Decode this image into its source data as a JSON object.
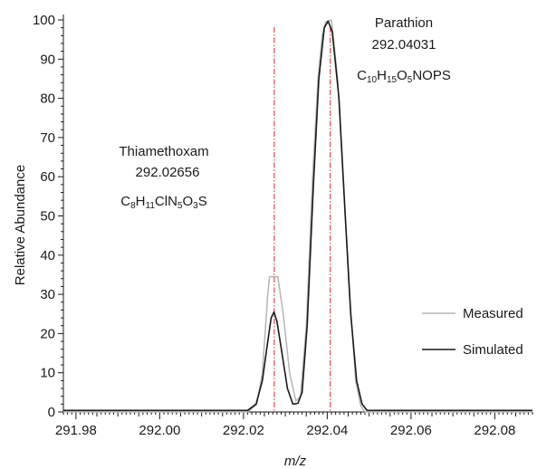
{
  "chart_data": {
    "type": "line",
    "xlabel": "m/z",
    "ylabel": "Relative Abundance",
    "xlim": [
      291.977,
      292.089
    ],
    "ylim": [
      0,
      100
    ],
    "xticks": [
      "291.98",
      "292.00",
      "292.02",
      "292.04",
      "292.06",
      "292.08"
    ],
    "yticks": [
      "0",
      "10",
      "20",
      "30",
      "40",
      "50",
      "60",
      "70",
      "80",
      "90",
      "100"
    ],
    "grid": false,
    "legend_position": "bottom-right",
    "annotations": [
      {
        "name": "Thiamethoxam",
        "mass": "292.02656",
        "formula": [
          [
            "C",
            ""
          ],
          [
            "8",
            "sub"
          ],
          [
            "H",
            ""
          ],
          [
            "11",
            "sub"
          ],
          [
            "ClN",
            ""
          ],
          [
            "5",
            "sub"
          ],
          [
            "O",
            ""
          ],
          [
            "3",
            "sub"
          ],
          [
            "S",
            ""
          ]
        ]
      },
      {
        "name": "Parathion",
        "mass": "292.04031",
        "formula": [
          [
            "C",
            ""
          ],
          [
            "10",
            "sub"
          ],
          [
            "H",
            ""
          ],
          [
            "15",
            "sub"
          ],
          [
            "O",
            ""
          ],
          [
            "5",
            "sub"
          ],
          [
            "NOPS",
            ""
          ]
        ]
      }
    ],
    "reference_lines": [
      292.02735,
      292.04073
    ],
    "series": [
      {
        "name": "Measured",
        "color": "#b5b5b5",
        "points": [
          [
            291.977,
            0
          ],
          [
            292.021,
            0
          ],
          [
            292.0232,
            2
          ],
          [
            292.0245,
            10
          ],
          [
            292.0258,
            30
          ],
          [
            292.0262,
            34.5
          ],
          [
            292.0282,
            34.5
          ],
          [
            292.0295,
            25
          ],
          [
            292.031,
            10
          ],
          [
            292.0325,
            2.8
          ],
          [
            292.0336,
            4
          ],
          [
            292.035,
            22
          ],
          [
            292.0365,
            60
          ],
          [
            292.0378,
            85
          ],
          [
            292.0388,
            96
          ],
          [
            292.0396,
            99.5
          ],
          [
            292.041,
            100
          ],
          [
            292.0425,
            85
          ],
          [
            292.0438,
            60
          ],
          [
            292.0452,
            32
          ],
          [
            292.0468,
            8
          ],
          [
            292.048,
            1.5
          ],
          [
            292.049,
            0
          ],
          [
            292.089,
            0
          ]
        ]
      },
      {
        "name": "Simulated",
        "color": "#1a1a1a",
        "points": [
          [
            291.977,
            0.4
          ],
          [
            292.021,
            0.4
          ],
          [
            292.023,
            2
          ],
          [
            292.0245,
            8
          ],
          [
            292.0258,
            18
          ],
          [
            292.0266,
            24
          ],
          [
            292.0273,
            25.5
          ],
          [
            292.028,
            23
          ],
          [
            292.0292,
            15
          ],
          [
            292.0305,
            6
          ],
          [
            292.0318,
            2
          ],
          [
            292.033,
            2.2
          ],
          [
            292.034,
            5
          ],
          [
            292.0352,
            22
          ],
          [
            292.0367,
            58
          ],
          [
            292.038,
            85
          ],
          [
            292.0393,
            98
          ],
          [
            292.0402,
            99.7
          ],
          [
            292.0412,
            97
          ],
          [
            292.0428,
            80
          ],
          [
            292.0442,
            52
          ],
          [
            292.0456,
            25
          ],
          [
            292.047,
            8
          ],
          [
            292.0483,
            2
          ],
          [
            292.0495,
            0.4
          ],
          [
            292.089,
            0.4
          ]
        ]
      }
    ]
  }
}
